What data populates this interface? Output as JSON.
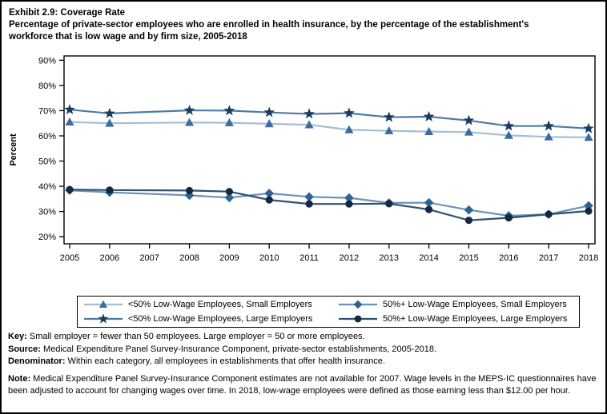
{
  "figure_title": {
    "line1": "Exhibit 2.9: Coverage Rate",
    "line2": "Percentage of private-sector employees who are enrolled in health insurance, by the percentage of the establishment's workforce that is low wage and by firm size, 2005-2018"
  },
  "chart_data": {
    "type": "line",
    "title": "Exhibit 2.9: Coverage Rate",
    "subtitle": "Percentage of private-sector employees who are enrolled in health insurance, by the percentage of the establishment's workforce that is low wage and by firm size, 2005-2018",
    "xlabel": "",
    "ylabel": "Percent",
    "ylim": [
      20,
      90
    ],
    "ytick_step": 10,
    "ytick_suffix": "%",
    "grid": false,
    "legend_position": "bottom",
    "missing_data_note": "2007 estimates not available; lines connect 2006 to 2008",
    "x": [
      2005,
      2006,
      2007,
      2008,
      2009,
      2010,
      2011,
      2012,
      2013,
      2014,
      2015,
      2016,
      2017,
      2018
    ],
    "series": [
      {
        "name": "<50% Low-Wage Employees, Small Employers",
        "marker": "triangle",
        "marker_color": "#3A6D9E",
        "line_color": "#A6BDD3",
        "values": [
          65.5,
          65.0,
          null,
          65.3,
          65.2,
          64.8,
          64.4,
          62.4,
          62.0,
          61.7,
          61.5,
          60.2,
          59.6,
          59.4
        ]
      },
      {
        "name": "<50% Low-Wage Employees, Large Employers",
        "marker": "star",
        "marker_color": "#1C3C5F",
        "line_color": "#4E7BA6",
        "values": [
          70.4,
          68.9,
          null,
          70.1,
          70.0,
          69.3,
          68.7,
          69.0,
          67.4,
          67.6,
          66.1,
          63.9,
          63.9,
          62.9
        ]
      },
      {
        "name": "50%+ Low-Wage Employees, Small Employers",
        "marker": "diamond",
        "marker_color": "#2D6395",
        "line_color": "#6C93B6",
        "values": [
          38.4,
          37.6,
          null,
          36.4,
          35.5,
          37.2,
          35.8,
          35.4,
          33.4,
          33.5,
          30.6,
          28.3,
          28.9,
          32.3
        ]
      },
      {
        "name": "50%+ Low-Wage Employees, Large Employers",
        "marker": "circle",
        "marker_color": "#13293F",
        "line_color": "#2F506F",
        "values": [
          38.7,
          38.5,
          null,
          38.3,
          37.9,
          34.6,
          33.0,
          33.0,
          33.1,
          30.8,
          26.5,
          27.5,
          28.9,
          30.2
        ]
      }
    ]
  },
  "legend": {
    "order": [
      0,
      2,
      1,
      3
    ]
  },
  "footnotes": {
    "key_label": "Key:",
    "key_text": " Small employer = fewer than 50 employees. Large employer = 50 or more employees.",
    "source_label": "Source:",
    "source_text": " Medical Expenditure Panel Survey-Insurance Component, private-sector establishments, 2005-2018.",
    "denominator_label": "Denominator:",
    "denominator_text": " Within each category, all employees in establishments that offer health insurance.",
    "note_label": "Note:",
    "note_text": " Medical Expenditure Panel Survey-Insurance Component estimates are not available for 2007. Wage levels in the MEPS-IC questionnaires have been adjusted to account for changing wages over time. In 2018, low-wage employees were defined as those earning less than $12.00 per hour."
  }
}
